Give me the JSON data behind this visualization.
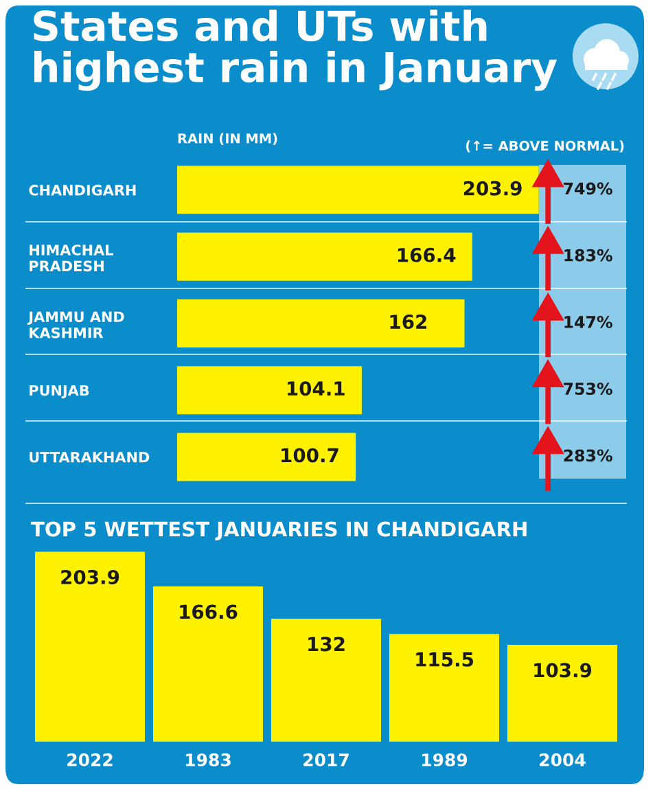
{
  "chart_data": [
    {
      "type": "bar",
      "orientation": "horizontal",
      "title": "States and UTs with highest rain in January",
      "xlabel": "RAIN (IN MM)",
      "categories": [
        "CHANDIGARH",
        "HIMACHAL\nPRADESH",
        "JAMMU AND\nKASHMIR",
        "PUNJAB",
        "UTTARAKHAND"
      ],
      "values": [
        203.9,
        166.4,
        162,
        104.1,
        100.7
      ],
      "color": "#fff200",
      "data_labels": true,
      "xlim": [
        0,
        204
      ],
      "tick_labels": "y",
      "grid": false,
      "legend": false,
      "annotations": [
        "(↑= ABOVE NORMAL)",
        "749%",
        "183%",
        "147%",
        "753%",
        "283%"
      ]
    },
    {
      "type": "bar",
      "title": "TOP 5 WETTEST JANUARIES IN CHANDIGARH",
      "categories": [
        "2022",
        "1983",
        "2017",
        "1989",
        "2004"
      ],
      "values": [
        203.9,
        166.6,
        132,
        115.5,
        103.9
      ],
      "color": "#fff200",
      "data_labels": true,
      "ylim": [
        0,
        205
      ],
      "tick_labels": "x",
      "grid": false,
      "legend": false
    }
  ]
}
